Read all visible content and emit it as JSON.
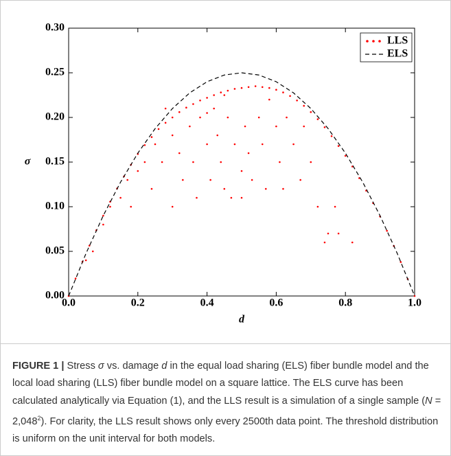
{
  "chart_data": {
    "type": "line",
    "xlabel": "d",
    "ylabel": "σ",
    "xlim": [
      0,
      1
    ],
    "ylim": [
      0,
      0.3
    ],
    "xticks": [
      {
        "value": 0,
        "label": "0.0"
      },
      0.2,
      0.4,
      0.6,
      0.8,
      {
        "value": 1,
        "label": "1.0"
      }
    ],
    "yticks": [
      {
        "value": 0,
        "label": "0.00"
      },
      0.05,
      {
        "value": 0.1,
        "label": "0.10"
      },
      0.15,
      {
        "value": 0.2,
        "label": "0.20"
      },
      0.25,
      {
        "value": 0.3,
        "label": "0.30"
      }
    ],
    "legend": "upper right",
    "series": [
      {
        "name": "LLS",
        "type": "scatter",
        "color": "#ff0000",
        "x": [
          0,
          0.02,
          0.04,
          0.06,
          0.08,
          0.1,
          0.12,
          0.14,
          0.16,
          0.18,
          0.2,
          0.22,
          0.24,
          0.26,
          0.28,
          0.3,
          0.32,
          0.34,
          0.36,
          0.38,
          0.4,
          0.42,
          0.44,
          0.46,
          0.48,
          0.5,
          0.52,
          0.54,
          0.56,
          0.58,
          0.6,
          0.62,
          0.64,
          0.66,
          0.68,
          0.7,
          0.72,
          0.74,
          0.76,
          0.78,
          0.8,
          0.82,
          0.84,
          0.86,
          0.88,
          0.9,
          0.92,
          0.94,
          0.96,
          0.98,
          1,
          0.05,
          0.07,
          0.1,
          0.12,
          0.15,
          0.17,
          0.18,
          0.2,
          0.22,
          0.24,
          0.25,
          0.27,
          0.3,
          0.3,
          0.32,
          0.33,
          0.35,
          0.36,
          0.37,
          0.38,
          0.4,
          0.41,
          0.42,
          0.43,
          0.44,
          0.45,
          0.46,
          0.47,
          0.48,
          0.5,
          0.5,
          0.51,
          0.52,
          0.53,
          0.55,
          0.56,
          0.57,
          0.58,
          0.6,
          0.61,
          0.62,
          0.63,
          0.65,
          0.67,
          0.68,
          0.7,
          0.72,
          0.74,
          0.75,
          0.77,
          0.78,
          0.82,
          0.28,
          0.4,
          0.45
        ],
        "values": [
          0,
          0.0196,
          0.0384,
          0.0564,
          0.0736,
          0.09,
          0.1056,
          0.1204,
          0.134,
          0.147,
          0.159,
          0.169,
          0.178,
          0.187,
          0.194,
          0.2,
          0.206,
          0.211,
          0.215,
          0.219,
          0.222,
          0.225,
          0.228,
          0.23,
          0.232,
          0.233,
          0.234,
          0.235,
          0.234,
          0.233,
          0.231,
          0.228,
          0.224,
          0.219,
          0.213,
          0.206,
          0.198,
          0.189,
          0.179,
          0.168,
          0.157,
          0.145,
          0.132,
          0.118,
          0.104,
          0.089,
          0.073,
          0.056,
          0.038,
          0.019,
          0,
          0.04,
          0.05,
          0.08,
          0.1,
          0.11,
          0.13,
          0.1,
          0.14,
          0.15,
          0.12,
          0.17,
          0.15,
          0.1,
          0.18,
          0.16,
          0.13,
          0.19,
          0.15,
          0.11,
          0.2,
          0.17,
          0.13,
          0.21,
          0.18,
          0.15,
          0.12,
          0.2,
          0.11,
          0.17,
          0.14,
          0.11,
          0.19,
          0.16,
          0.13,
          0.2,
          0.17,
          0.12,
          0.22,
          0.19,
          0.15,
          0.12,
          0.2,
          0.17,
          0.13,
          0.19,
          0.15,
          0.1,
          0.06,
          0.07,
          0.1,
          0.07,
          0.06,
          0.21,
          0.205,
          0.225
        ]
      },
      {
        "name": "ELS",
        "type": "line",
        "color": "#000000",
        "x": [
          0,
          0.05,
          0.1,
          0.15,
          0.2,
          0.25,
          0.3,
          0.35,
          0.4,
          0.45,
          0.5,
          0.55,
          0.6,
          0.65,
          0.7,
          0.75,
          0.8,
          0.85,
          0.9,
          0.95,
          1
        ],
        "values": [
          0,
          0.0475,
          0.09,
          0.1275,
          0.16,
          0.1875,
          0.21,
          0.2275,
          0.24,
          0.2475,
          0.25,
          0.2475,
          0.24,
          0.2275,
          0.21,
          0.1875,
          0.16,
          0.1275,
          0.09,
          0.0475,
          0
        ]
      }
    ]
  },
  "caption": {
    "runs": [
      "FIGURE 1 |",
      " Stress ",
      "σ",
      " vs. damage ",
      "d",
      " in the equal load sharing (ELS) fiber bundle model and the local load sharing (LLS) fiber bundle model on a square lattice. The ELS curve has been calculated analytically via Equation (1), and the LLS result is a simulation of a single sample (",
      "N",
      " = 2,048",
      "2",
      "). For clarity, the LLS result shows only every 2500th data point. The threshold distribution is uniform on the unit interval for both models."
    ]
  }
}
